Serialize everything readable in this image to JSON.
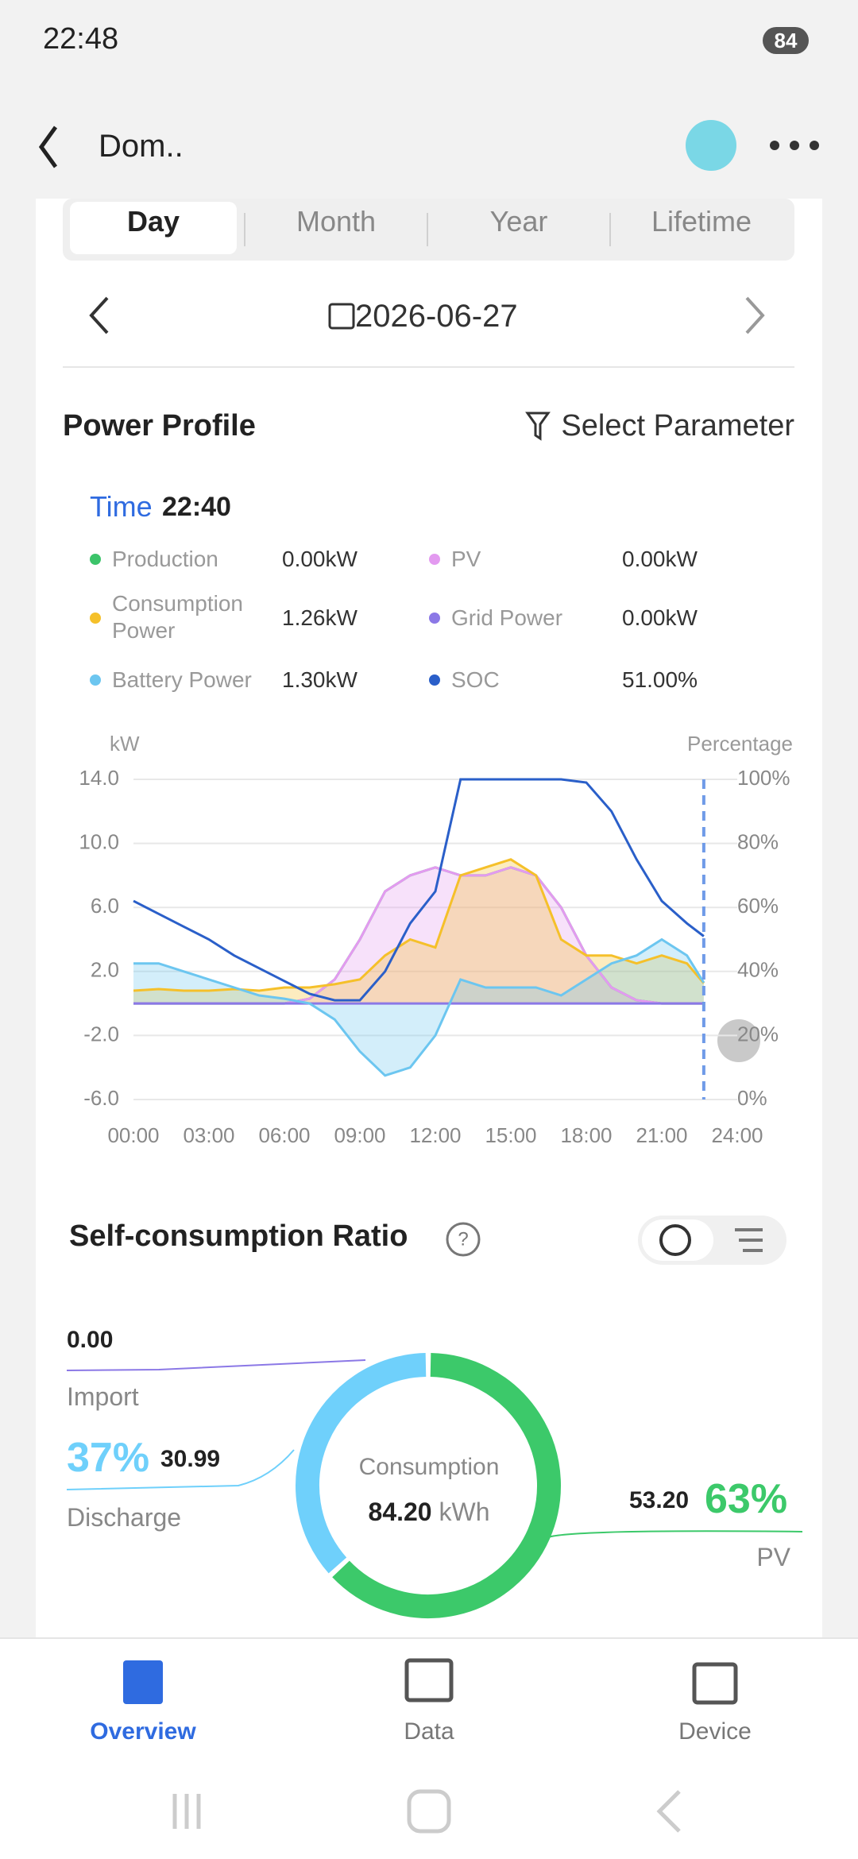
{
  "status_bar": {
    "time": "22:48",
    "battery": "84"
  },
  "header": {
    "title": "Dom.."
  },
  "tabs": [
    "Day",
    "Month",
    "Year",
    "Lifetime"
  ],
  "date": "2026-06-27",
  "power_profile": {
    "title": "Power Profile",
    "action": "Select Parameter",
    "time_label": "Time",
    "time": "22:40"
  },
  "chart_data": {
    "type": "line",
    "y_label": "kW",
    "y2_label": "Percentage",
    "x": [
      0,
      1,
      2,
      3,
      4,
      5,
      6,
      7,
      8,
      9,
      10,
      11,
      12,
      13,
      14,
      15,
      16,
      17,
      18,
      19,
      20,
      21,
      22,
      22.67
    ],
    "xlim": [
      0,
      24
    ],
    "xticks": [
      {
        "value": 0,
        "label": "00:00"
      },
      {
        "value": 3,
        "label": "03:00"
      },
      {
        "value": 6,
        "label": "06:00"
      },
      {
        "value": 9,
        "label": "09:00"
      },
      {
        "value": 12,
        "label": "12:00"
      },
      {
        "value": 15,
        "label": "15:00"
      },
      {
        "value": 18,
        "label": "18:00"
      },
      {
        "value": 21,
        "label": "21:00"
      },
      {
        "value": 24,
        "label": "24:00"
      }
    ],
    "ylim": [
      -6,
      14
    ],
    "yticks": [
      {
        "value": 14,
        "label": "14.0"
      },
      {
        "value": 10,
        "label": "10.0"
      },
      {
        "value": 6,
        "label": "6.0"
      },
      {
        "value": 2,
        "label": "2.0"
      },
      {
        "value": -2,
        "label": "-2.0"
      },
      {
        "value": -6,
        "label": "-6.0"
      }
    ],
    "y2lim": [
      0,
      100
    ],
    "y2ticks": [
      {
        "value": 100,
        "label": "100%"
      },
      {
        "value": 80,
        "label": "80%"
      },
      {
        "value": 60,
        "label": "60%"
      },
      {
        "value": 40,
        "label": "40%"
      },
      {
        "value": 20,
        "label": "20%"
      },
      {
        "value": 0,
        "label": "0%"
      }
    ],
    "grid": true,
    "series": [
      {
        "name": "Production",
        "current": "0.00kW",
        "color": "#3cc46a",
        "values": [
          0,
          0,
          0,
          0,
          0,
          0,
          0,
          0.3,
          1.5,
          4,
          7,
          8,
          8.5,
          8,
          8,
          8.5,
          8,
          6,
          3,
          1,
          0.2,
          0,
          0,
          0
        ]
      },
      {
        "name": "PV",
        "current": "0.00kW",
        "color": "#e39af0",
        "values": [
          0,
          0,
          0,
          0,
          0,
          0,
          0,
          0.3,
          1.5,
          4,
          7,
          8,
          8.5,
          8,
          8,
          8.5,
          8,
          6,
          3,
          1,
          0.2,
          0,
          0,
          0
        ]
      },
      {
        "name": "Consumption Power",
        "current": "1.26kW",
        "color": "#f5c02a",
        "values": [
          0.8,
          0.9,
          0.8,
          0.8,
          0.9,
          0.8,
          1,
          1,
          1.2,
          1.5,
          3,
          4,
          3.5,
          8,
          8.5,
          9,
          8,
          4,
          3,
          3,
          2.5,
          3,
          2.5,
          1.26
        ]
      },
      {
        "name": "Grid Power",
        "current": "0.00kW",
        "color": "#8b78e6",
        "values": [
          0,
          0,
          0,
          0,
          0,
          0,
          0,
          0,
          0,
          0,
          0,
          0,
          0,
          0,
          0,
          0,
          0,
          0,
          0,
          0,
          0,
          0,
          0,
          0
        ]
      },
      {
        "name": "Battery Power",
        "current": "1.30kW",
        "color": "#6cc6f0",
        "values": [
          2.5,
          2.5,
          2,
          1.5,
          1,
          0.5,
          0.3,
          0,
          -1,
          -3,
          -4.5,
          -4,
          -2,
          1.5,
          1,
          1,
          1,
          0.5,
          1.5,
          2.5,
          3,
          4,
          3,
          1.3
        ]
      },
      {
        "name": "SOC",
        "current": "51.00%",
        "color": "#2a5fc9",
        "axis": "y2",
        "values": [
          62,
          58,
          54,
          50,
          45,
          41,
          37,
          33,
          31,
          31,
          40,
          55,
          65,
          100,
          100,
          100,
          100,
          100,
          99,
          90,
          75,
          62,
          55,
          51
        ]
      }
    ]
  },
  "self_consumption": {
    "title": "Self-consumption Ratio",
    "center_label": "Consumption",
    "total": "84.20",
    "unit": "kWh",
    "segments": [
      {
        "name": "PV",
        "value": 53.2,
        "value_label": "53.20",
        "percent": "63%",
        "color": "#3cc96a"
      },
      {
        "name": "Discharge",
        "value": 30.99,
        "value_label": "30.99",
        "percent": "37%",
        "color": "#6fd0fb"
      },
      {
        "name": "Import",
        "value": 0,
        "value_label": "0.00",
        "color": "#8b78e6"
      }
    ]
  },
  "nav": [
    "Overview",
    "Data",
    "Device"
  ]
}
